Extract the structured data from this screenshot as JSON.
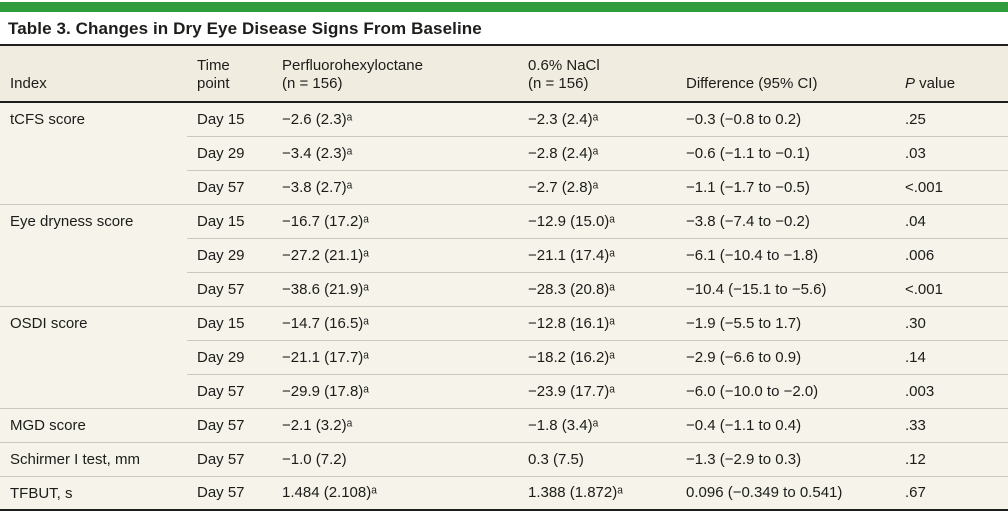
{
  "colors": {
    "accent_green": "#2e9b3d",
    "header_bg": "#f0ecdf",
    "body_bg": "#f5f3ea",
    "rule_dark": "#1e1e1c",
    "rule_light": "#cbc8bb",
    "text": "#1c1c1a"
  },
  "title": "Table 3. Changes in Dry Eye Disease Signs From Baseline",
  "header": {
    "index": "Index",
    "time_line1": "Time",
    "time_line2": "point",
    "drug_line1": "Perfluorohexyloctane",
    "drug_line2": "(n = 156)",
    "nacl_line1": "0.6% NaCl",
    "nacl_line2": "(n = 156)",
    "difference": "Difference (95% CI)",
    "p_italic": "P",
    "p_rest": " value"
  },
  "rows": [
    {
      "index": "tCFS score",
      "time": "Day 15",
      "drug": "−2.6 (2.3)ᵃ",
      "nacl": "−2.3 (2.4)ᵃ",
      "diff": "−0.3 (−0.8 to 0.2)",
      "p": ".25"
    },
    {
      "time": "Day 29",
      "drug": "−3.4 (2.3)ᵃ",
      "nacl": "−2.8 (2.4)ᵃ",
      "diff": "−0.6 (−1.1 to −0.1)",
      "p": ".03"
    },
    {
      "time": "Day 57",
      "drug": "−3.8 (2.7)ᵃ",
      "nacl": "−2.7 (2.8)ᵃ",
      "diff": "−1.1 (−1.7 to −0.5)",
      "p": "<.001"
    },
    {
      "index": "Eye dryness score",
      "time": "Day 15",
      "drug": "−16.7 (17.2)ᵃ",
      "nacl": "−12.9 (15.0)ᵃ",
      "diff": "−3.8 (−7.4 to −0.2)",
      "p": ".04"
    },
    {
      "time": "Day 29",
      "drug": "−27.2 (21.1)ᵃ",
      "nacl": "−21.1 (17.4)ᵃ",
      "diff": "−6.1 (−10.4 to −1.8)",
      "p": ".006"
    },
    {
      "time": "Day 57",
      "drug": "−38.6 (21.9)ᵃ",
      "nacl": "−28.3 (20.8)ᵃ",
      "diff": "−10.4 (−15.1 to −5.6)",
      "p": "<.001"
    },
    {
      "index": "OSDI score",
      "time": "Day 15",
      "drug": "−14.7 (16.5)ᵃ",
      "nacl": "−12.8 (16.1)ᵃ",
      "diff": "−1.9 (−5.5 to 1.7)",
      "p": ".30"
    },
    {
      "time": "Day 29",
      "drug": "−21.1 (17.7)ᵃ",
      "nacl": "−18.2 (16.2)ᵃ",
      "diff": "−2.9 (−6.6 to 0.9)",
      "p": ".14"
    },
    {
      "time": "Day 57",
      "drug": "−29.9 (17.8)ᵃ",
      "nacl": "−23.9 (17.7)ᵃ",
      "diff": "−6.0 (−10.0 to −2.0)",
      "p": ".003"
    },
    {
      "index": "MGD score",
      "time": "Day 57",
      "drug": "−2.1 (3.2)ᵃ",
      "nacl": "−1.8 (3.4)ᵃ",
      "diff": "−0.4 (−1.1 to 0.4)",
      "p": ".33"
    },
    {
      "index": "Schirmer I test, mm",
      "time": "Day 57",
      "drug": "−1.0 (7.2)",
      "nacl": "0.3 (7.5)",
      "diff": "−1.3 (−2.9 to 0.3)",
      "p": ".12"
    },
    {
      "index": "TFBUT, s",
      "time": "Day 57",
      "drug": "1.484 (2.108)ᵃ",
      "nacl": "1.388 (1.872)ᵃ",
      "diff": "0.096 (−0.349 to 0.541)",
      "p": ".67"
    }
  ]
}
